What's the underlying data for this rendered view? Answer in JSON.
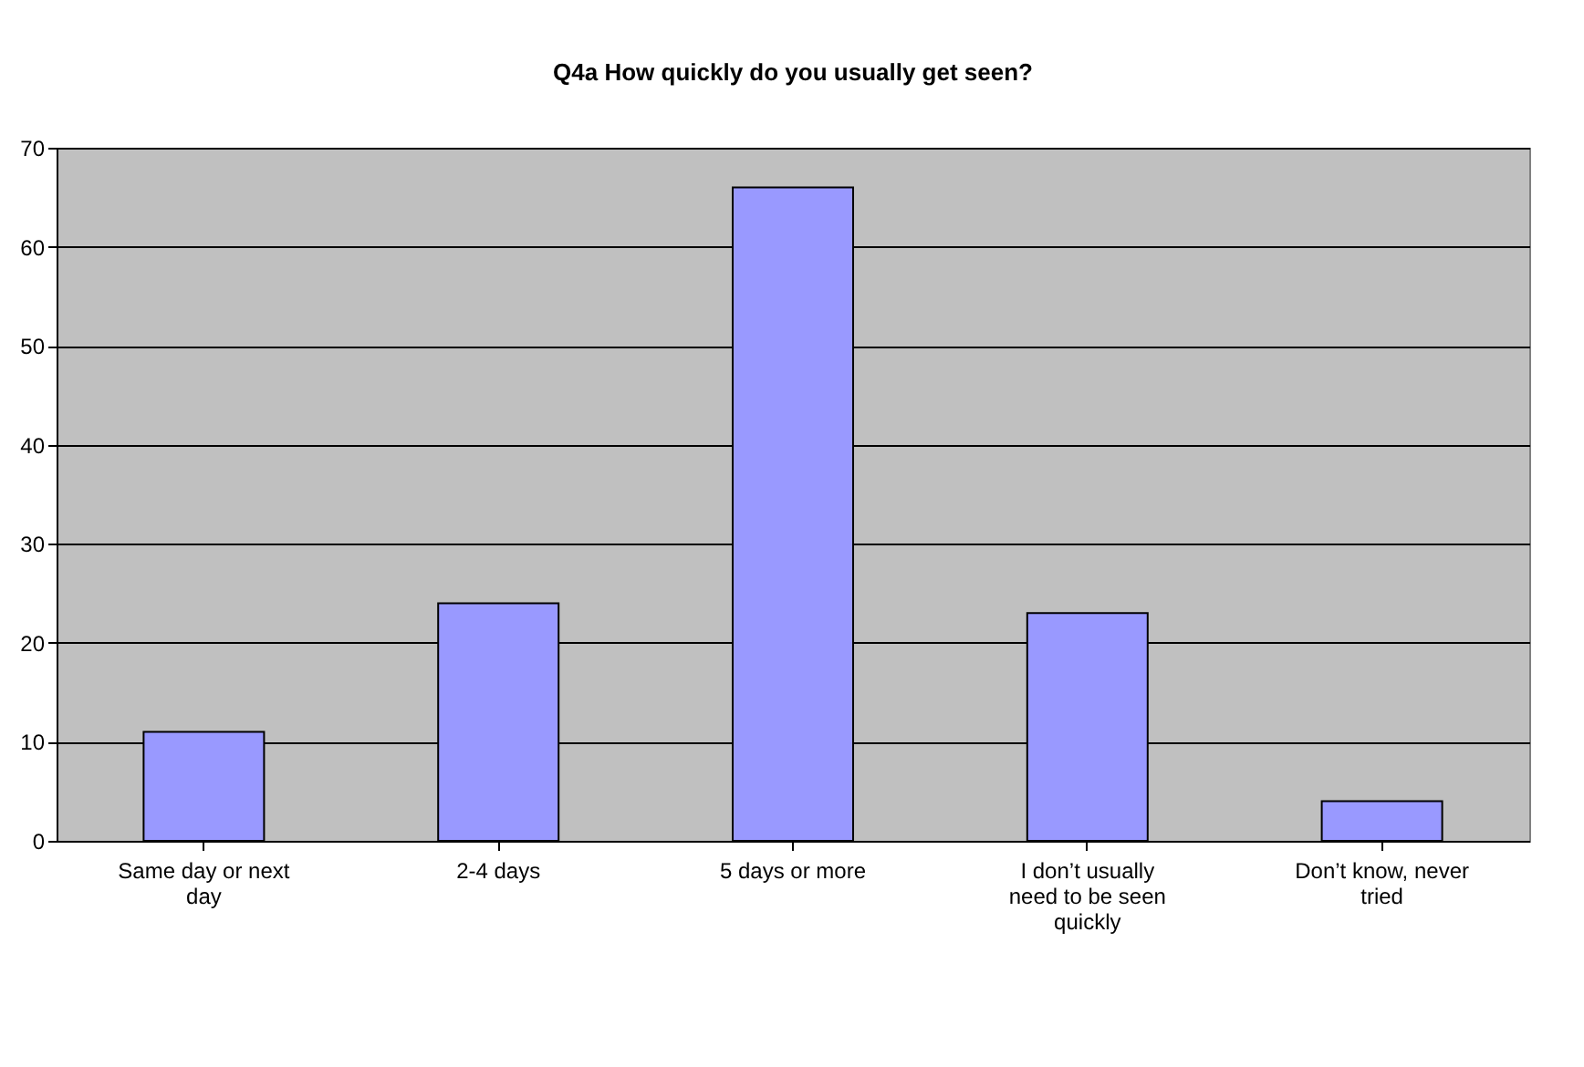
{
  "chart_data": {
    "type": "bar",
    "title": "Q4a How quickly do you usually get seen?",
    "categories": [
      "Same day or next day",
      "2-4 days",
      "5 days or more",
      "I don’t usually need to be seen quickly",
      "Don’t know, never tried"
    ],
    "values": [
      11,
      24,
      66,
      23,
      4
    ],
    "color": "#9999ff",
    "ylim": [
      0,
      70
    ],
    "yticks": [
      0,
      10,
      20,
      30,
      40,
      50,
      60,
      70
    ],
    "grid": "y"
  }
}
